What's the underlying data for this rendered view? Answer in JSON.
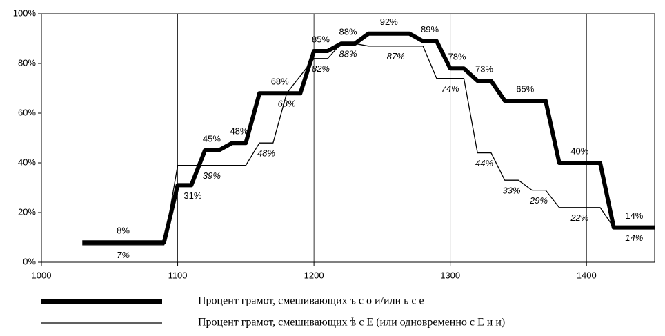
{
  "chart_data": {
    "type": "line",
    "xlim": [
      1000,
      1450
    ],
    "xticks": [
      1000,
      1100,
      1200,
      1300,
      1400
    ],
    "ylim": [
      0,
      100
    ],
    "yticks": [
      {
        "value": 0,
        "label": "0%"
      },
      {
        "value": 20,
        "label": "20%"
      },
      {
        "value": 40,
        "label": "40%"
      },
      {
        "value": 60,
        "label": "60%"
      },
      {
        "value": 80,
        "label": "80%"
      },
      {
        "value": 100,
        "label": "100%"
      }
    ],
    "grid": "x",
    "series": [
      {
        "name": "Процент грамот, смешивающих ъ с о и/или ь с е",
        "color": "#000000",
        "x": [
          1030,
          1090,
          1100,
          1110,
          1120,
          1130,
          1140,
          1150,
          1160,
          1190,
          1200,
          1210,
          1220,
          1230,
          1240,
          1270,
          1280,
          1290,
          1300,
          1310,
          1320,
          1330,
          1340,
          1370,
          1380,
          1410,
          1420,
          1450
        ],
        "values": [
          8,
          8,
          31,
          31,
          45,
          45,
          48,
          48,
          68,
          68,
          85,
          85,
          88,
          88,
          92,
          92,
          89,
          89,
          78,
          78,
          73,
          73,
          65,
          65,
          40,
          40,
          14,
          14
        ],
        "value_labels": [
          "8%",
          null,
          "31%",
          null,
          "45%",
          null,
          "48%",
          null,
          "68%",
          null,
          "85%",
          null,
          "88%",
          null,
          "92%",
          null,
          "89%",
          null,
          "78%",
          null,
          "73%",
          null,
          "65%",
          null,
          "40%",
          null,
          "14%",
          null
        ]
      },
      {
        "name": "Процент грамот, смешивающих ѣ с Е (или одновременно с Е и и)",
        "color": "#000000",
        "x": [
          1030,
          1090,
          1100,
          1150,
          1160,
          1170,
          1180,
          1200,
          1210,
          1220,
          1230,
          1240,
          1280,
          1290,
          1310,
          1320,
          1330,
          1340,
          1350,
          1360,
          1370,
          1380,
          1410,
          1420,
          1450
        ],
        "values": [
          7,
          7,
          39,
          39,
          48,
          48,
          68,
          82,
          82,
          88,
          88,
          87,
          87,
          74,
          74,
          44,
          44,
          33,
          33,
          29,
          29,
          22,
          22,
          14,
          14
        ],
        "value_labels": [
          "7%",
          null,
          "39%",
          null,
          "48%",
          null,
          "68%",
          "82%",
          null,
          "88%",
          null,
          "87%",
          null,
          "74%",
          null,
          "44%",
          null,
          "33%",
          null,
          "29%",
          null,
          "22%",
          null,
          "14%",
          null
        ]
      }
    ]
  }
}
